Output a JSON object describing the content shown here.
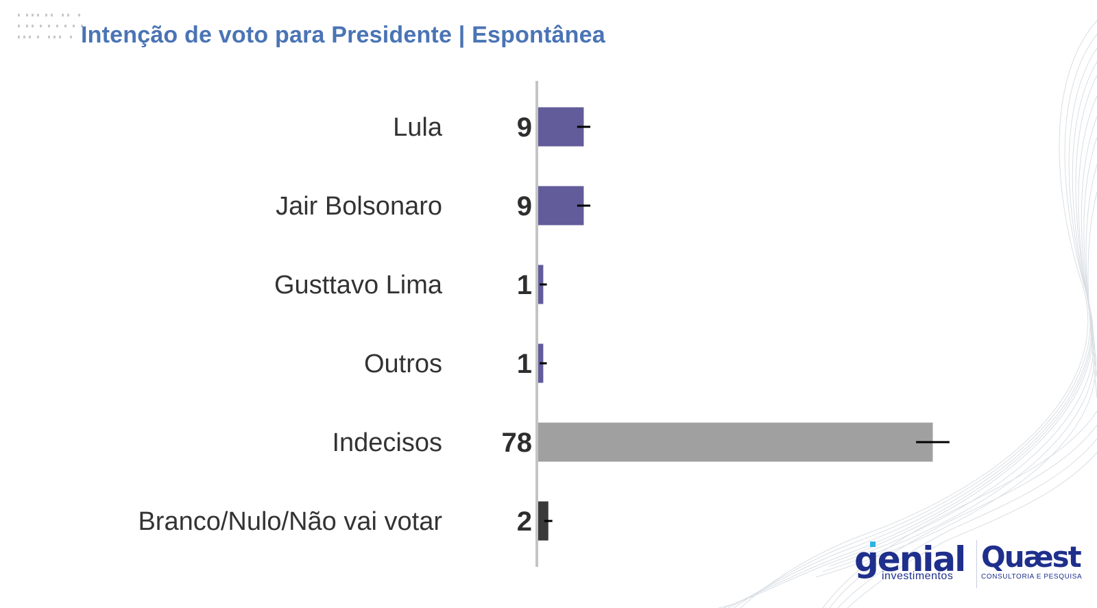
{
  "header": {
    "title": "Intenção de voto para Presidente | Espontânea"
  },
  "colors": {
    "title": "#4a74b5",
    "candidate_bar": "#625c9a",
    "undecided_bar": "#a0a0a0",
    "blank_bar": "#3a3a3a",
    "axis": "#c4c4c4",
    "error_bar": "#000000"
  },
  "chart_data": {
    "type": "bar",
    "orientation": "horizontal",
    "title": "Intenção de voto para Presidente | Espontânea",
    "categories": [
      "Lula",
      "Jair Bolsonaro",
      "Gusttavo Lima",
      "Outros",
      "Indecisos",
      "Branco/Nulo/Não vai votar"
    ],
    "values": [
      9,
      9,
      1,
      1,
      78,
      2
    ],
    "error_margin": [
      1.3,
      1.3,
      0.7,
      0.7,
      3.3,
      0.8
    ],
    "bar_colors": [
      "#625c9a",
      "#625c9a",
      "#625c9a",
      "#625c9a",
      "#a0a0a0",
      "#3a3a3a"
    ],
    "xlim": [
      0,
      82
    ],
    "grid": false,
    "legend": "none",
    "unit": "%"
  },
  "logos": {
    "genial_name": "genial",
    "genial_sub": "investimentos",
    "quaest_name": "Quæst",
    "quaest_sub": "CONSULTORIA E PESQUISA"
  }
}
